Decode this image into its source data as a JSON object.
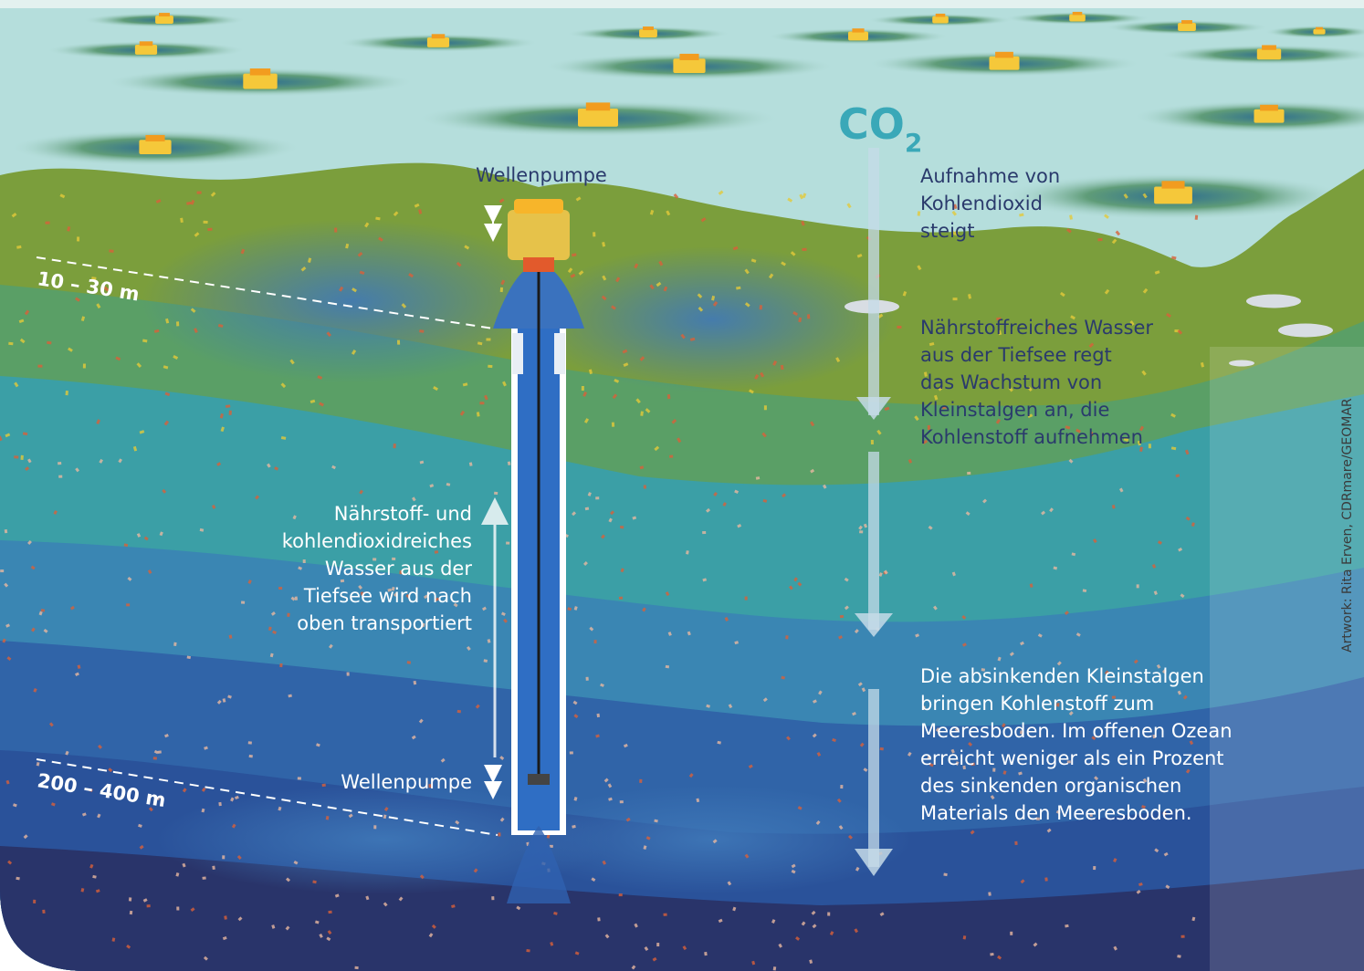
{
  "co2": {
    "main": "CO",
    "sub": "2"
  },
  "pump_top": "Wellenpumpe",
  "pump_bottom": "Wellenpumpe",
  "uptake": [
    "Aufnahme von",
    "Kohlendioxid",
    "steigt"
  ],
  "nutrients": [
    "Nährstoffreiches Wasser",
    "aus der Tiefsee regt",
    "das Wachstum von",
    "Kleinstalgen an, die",
    "Kohlenstoff aufnehmen"
  ],
  "transport": [
    "Nährstoff- und",
    "kohlendioxidreiches",
    "Wasser aus der",
    "Tiefsee wird nach",
    "oben transportiert"
  ],
  "sinking": [
    "Die absinkenden Kleinstalgen",
    "bringen Kohlenstoff zum",
    "Meeresboden. Im offenen Ozean",
    "erreicht weniger als ein Prozent",
    "des sinkenden organischen",
    "Materials den Meeresboden."
  ],
  "depth_top": "10 – 30 m",
  "depth_bottom": "200 – 400 m",
  "credit": "Artwork: Rita Erven, CDRmare/GEOMAR"
}
